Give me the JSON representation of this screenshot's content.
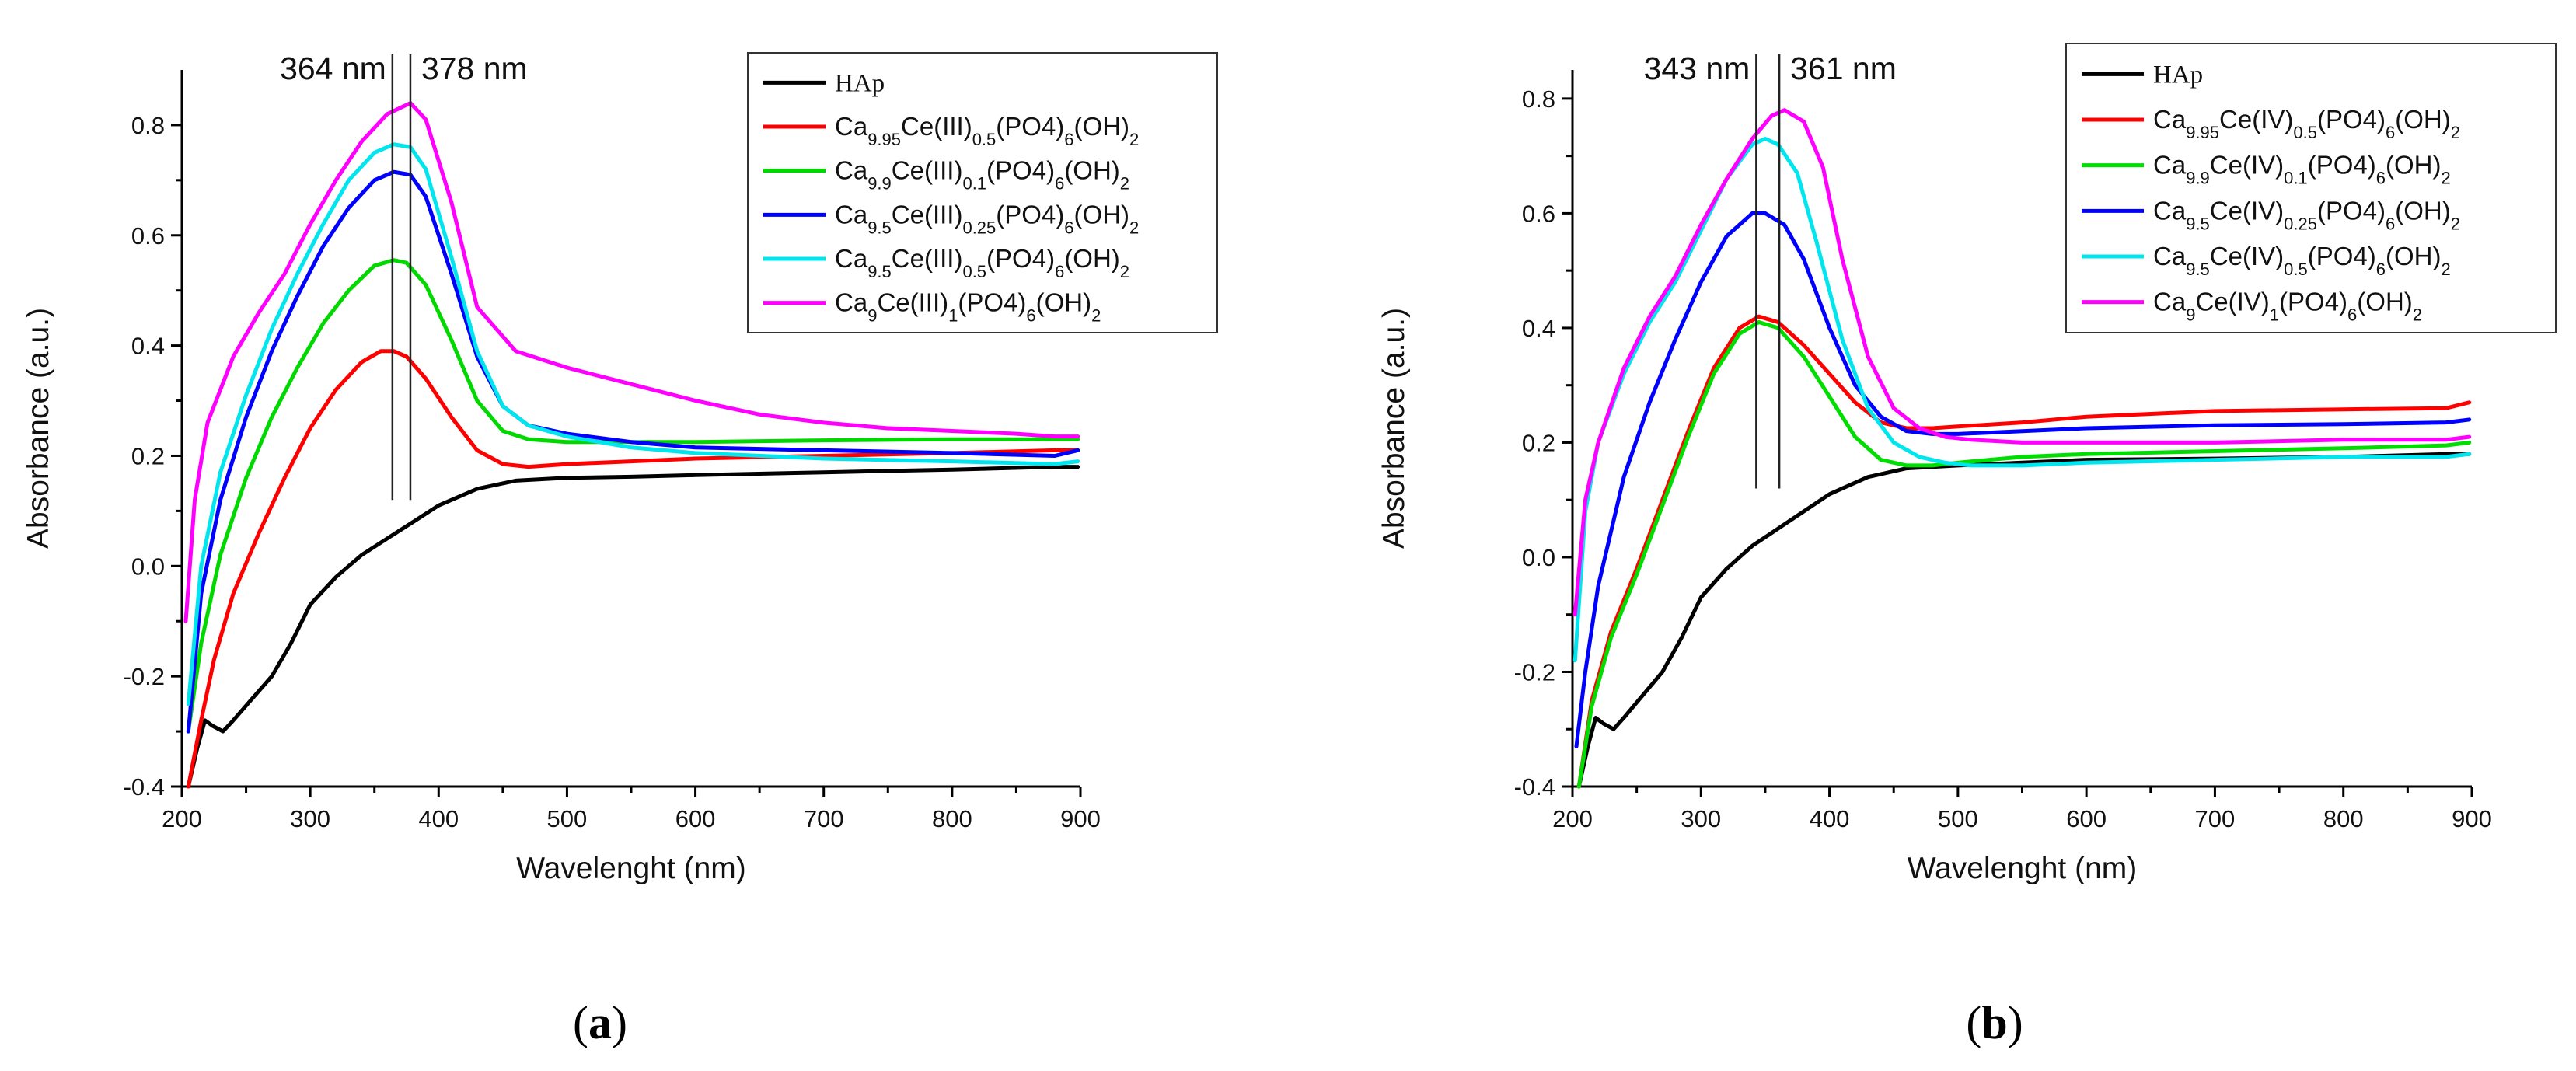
{
  "chart_data": [
    {
      "id": "a",
      "type": "line",
      "panel_label": "a",
      "xlabel": "Wavelenght (nm)",
      "ylabel": "Absorbance (a.u.)",
      "xlim": [
        200,
        900
      ],
      "ylim": [
        -0.4,
        0.9
      ],
      "xticks": [
        200,
        300,
        400,
        500,
        600,
        700,
        800,
        900
      ],
      "yticks": [
        -0.4,
        -0.2,
        0.0,
        0.2,
        0.4,
        0.6,
        0.8
      ],
      "grid": false,
      "legend_position": "top-right",
      "markers": [
        {
          "x": 364,
          "label": "364 nm",
          "side": "left"
        },
        {
          "x": 378,
          "label": "378 nm",
          "side": "right"
        }
      ],
      "series": [
        {
          "name": "HAp",
          "label_parts": [
            [
              "HAp",
              "n"
            ]
          ],
          "serif": true,
          "color": "#000000",
          "x": [
            205,
            212,
            218,
            224,
            232,
            240,
            255,
            270,
            285,
            300,
            320,
            340,
            360,
            380,
            400,
            430,
            460,
            500,
            550,
            600,
            700,
            800,
            880,
            898
          ],
          "y": [
            -0.4,
            -0.33,
            -0.28,
            -0.29,
            -0.3,
            -0.28,
            -0.24,
            -0.2,
            -0.14,
            -0.07,
            -0.02,
            0.02,
            0.05,
            0.08,
            0.11,
            0.14,
            0.155,
            0.16,
            0.162,
            0.165,
            0.17,
            0.175,
            0.18,
            0.18
          ]
        },
        {
          "name": "Ca9.95Ce(III)0.5(PO4)6(OH)2",
          "label_parts": [
            [
              "Ca",
              "n"
            ],
            [
              "9.95",
              "sub"
            ],
            [
              "Ce(III)",
              "n"
            ],
            [
              "0.5",
              "sub"
            ],
            [
              "(PO4)",
              "n"
            ],
            [
              "6",
              "sub"
            ],
            [
              "(OH)",
              "n"
            ],
            [
              "2",
              "sub"
            ]
          ],
          "color": "#ff0000",
          "x": [
            205,
            215,
            225,
            240,
            260,
            280,
            300,
            320,
            340,
            355,
            365,
            375,
            390,
            410,
            430,
            450,
            470,
            500,
            550,
            600,
            700,
            800,
            880,
            898
          ],
          "y": [
            -0.4,
            -0.28,
            -0.17,
            -0.05,
            0.06,
            0.16,
            0.25,
            0.32,
            0.37,
            0.39,
            0.39,
            0.38,
            0.34,
            0.27,
            0.21,
            0.185,
            0.18,
            0.185,
            0.19,
            0.195,
            0.2,
            0.205,
            0.21,
            0.21
          ]
        },
        {
          "name": "Ca9.9Ce(III)0.1(PO4)6(OH)2",
          "label_parts": [
            [
              "Ca",
              "n"
            ],
            [
              "9.9",
              "sub"
            ],
            [
              "Ce(III)",
              "n"
            ],
            [
              "0.1",
              "sub"
            ],
            [
              "(PO4)",
              "n"
            ],
            [
              "6",
              "sub"
            ],
            [
              "(OH)",
              "n"
            ],
            [
              "2",
              "sub"
            ]
          ],
          "color": "#00d800",
          "x": [
            205,
            215,
            230,
            250,
            270,
            290,
            310,
            330,
            350,
            365,
            375,
            390,
            410,
            430,
            450,
            470,
            500,
            550,
            600,
            700,
            800,
            880,
            898
          ],
          "y": [
            -0.3,
            -0.14,
            0.02,
            0.16,
            0.27,
            0.36,
            0.44,
            0.5,
            0.545,
            0.555,
            0.55,
            0.51,
            0.41,
            0.3,
            0.245,
            0.23,
            0.225,
            0.225,
            0.225,
            0.228,
            0.23,
            0.23,
            0.23
          ]
        },
        {
          "name": "Ca9.5Ce(III)0.25(PO4)6(OH)2",
          "label_parts": [
            [
              "Ca",
              "n"
            ],
            [
              "9.5",
              "sub"
            ],
            [
              "Ce(III)",
              "n"
            ],
            [
              "0.25",
              "sub"
            ],
            [
              "(PO4)",
              "n"
            ],
            [
              "6",
              "sub"
            ],
            [
              "(OH)",
              "n"
            ],
            [
              "2",
              "sub"
            ]
          ],
          "color": "#0000ff",
          "x": [
            205,
            215,
            230,
            250,
            270,
            290,
            310,
            330,
            350,
            365,
            378,
            390,
            410,
            430,
            450,
            470,
            500,
            550,
            600,
            700,
            800,
            880,
            898
          ],
          "y": [
            -0.3,
            -0.05,
            0.12,
            0.27,
            0.39,
            0.49,
            0.58,
            0.65,
            0.7,
            0.715,
            0.71,
            0.67,
            0.53,
            0.38,
            0.29,
            0.255,
            0.24,
            0.225,
            0.215,
            0.21,
            0.205,
            0.2,
            0.21
          ]
        },
        {
          "name": "Ca9.5Ce(III)0.5(PO4)6(OH)2",
          "label_parts": [
            [
              "Ca",
              "n"
            ],
            [
              "9.5",
              "sub"
            ],
            [
              "Ce(III)",
              "n"
            ],
            [
              "0.5",
              "sub"
            ],
            [
              "(PO4)",
              "n"
            ],
            [
              "6",
              "sub"
            ],
            [
              "(OH)",
              "n"
            ],
            [
              "2",
              "sub"
            ]
          ],
          "color": "#00e5ee",
          "x": [
            205,
            215,
            230,
            250,
            270,
            290,
            310,
            330,
            350,
            365,
            378,
            390,
            410,
            430,
            450,
            470,
            500,
            550,
            600,
            700,
            800,
            880,
            898
          ],
          "y": [
            -0.25,
            0.0,
            0.17,
            0.31,
            0.43,
            0.53,
            0.62,
            0.7,
            0.75,
            0.765,
            0.76,
            0.72,
            0.56,
            0.39,
            0.29,
            0.255,
            0.235,
            0.215,
            0.205,
            0.195,
            0.19,
            0.185,
            0.19
          ]
        },
        {
          "name": "Ca9Ce(III)1(PO4)6(OH)2",
          "label_parts": [
            [
              "Ca",
              "n"
            ],
            [
              "9",
              "sub"
            ],
            [
              "Ce(III)",
              "n"
            ],
            [
              "1",
              "sub"
            ],
            [
              "(PO4)",
              "n"
            ],
            [
              "6",
              "sub"
            ],
            [
              "(OH)",
              "n"
            ],
            [
              "2",
              "sub"
            ]
          ],
          "color": "#ff00ff",
          "x": [
            203,
            210,
            220,
            240,
            260,
            280,
            300,
            320,
            340,
            360,
            378,
            390,
            410,
            430,
            460,
            500,
            550,
            600,
            650,
            700,
            750,
            800,
            850,
            880,
            898
          ],
          "y": [
            -0.1,
            0.12,
            0.26,
            0.38,
            0.46,
            0.53,
            0.62,
            0.7,
            0.77,
            0.82,
            0.84,
            0.81,
            0.66,
            0.47,
            0.39,
            0.36,
            0.33,
            0.3,
            0.275,
            0.26,
            0.25,
            0.245,
            0.24,
            0.235,
            0.235
          ]
        }
      ]
    },
    {
      "id": "b",
      "type": "line",
      "panel_label": "b",
      "xlabel": "Wavelenght (nm)",
      "ylabel": "Absorbance (a.u.)",
      "xlim": [
        200,
        900
      ],
      "ylim": [
        -0.4,
        0.85
      ],
      "xticks": [
        200,
        300,
        400,
        500,
        600,
        700,
        800,
        900
      ],
      "yticks": [
        -0.4,
        -0.2,
        0.0,
        0.2,
        0.4,
        0.6,
        0.8
      ],
      "grid": false,
      "legend_position": "top-right",
      "markers": [
        {
          "x": 343,
          "label": "343 nm",
          "side": "left"
        },
        {
          "x": 361,
          "label": "361 nm",
          "side": "right"
        }
      ],
      "series": [
        {
          "name": "HAp",
          "label_parts": [
            [
              "HAp",
              "n"
            ]
          ],
          "serif": true,
          "color": "#000000",
          "x": [
            205,
            212,
            218,
            224,
            232,
            240,
            255,
            270,
            285,
            300,
            320,
            340,
            360,
            380,
            400,
            430,
            460,
            500,
            550,
            600,
            700,
            800,
            880,
            898
          ],
          "y": [
            -0.4,
            -0.33,
            -0.28,
            -0.29,
            -0.3,
            -0.28,
            -0.24,
            -0.2,
            -0.14,
            -0.07,
            -0.02,
            0.02,
            0.05,
            0.08,
            0.11,
            0.14,
            0.155,
            0.16,
            0.165,
            0.17,
            0.172,
            0.175,
            0.18,
            0.18
          ]
        },
        {
          "name": "Ca9.95Ce(IV)0.5(PO4)6(OH)2",
          "label_parts": [
            [
              "Ca",
              "n"
            ],
            [
              "9.95",
              "sub"
            ],
            [
              "Ce(IV)",
              "n"
            ],
            [
              "0.5",
              "sub"
            ],
            [
              "(PO4)",
              "n"
            ],
            [
              "6",
              "sub"
            ],
            [
              "(OH)",
              "n"
            ],
            [
              "2",
              "sub"
            ]
          ],
          "color": "#ff0000",
          "x": [
            205,
            215,
            230,
            250,
            270,
            290,
            310,
            330,
            345,
            360,
            380,
            400,
            420,
            440,
            460,
            480,
            500,
            550,
            600,
            700,
            800,
            880,
            898
          ],
          "y": [
            -0.4,
            -0.25,
            -0.13,
            -0.02,
            0.1,
            0.22,
            0.33,
            0.4,
            0.42,
            0.41,
            0.37,
            0.32,
            0.27,
            0.235,
            0.225,
            0.225,
            0.228,
            0.235,
            0.245,
            0.255,
            0.258,
            0.26,
            0.27
          ]
        },
        {
          "name": "Ca9.9Ce(IV)0.1(PO4)6(OH)2",
          "label_parts": [
            [
              "Ca",
              "n"
            ],
            [
              "9.9",
              "sub"
            ],
            [
              "Ce(IV)",
              "n"
            ],
            [
              "0.1",
              "sub"
            ],
            [
              "(PO4)",
              "n"
            ],
            [
              "6",
              "sub"
            ],
            [
              "(OH)",
              "n"
            ],
            [
              "2",
              "sub"
            ]
          ],
          "color": "#00dd00",
          "x": [
            205,
            215,
            230,
            250,
            270,
            290,
            310,
            330,
            345,
            360,
            380,
            400,
            420,
            440,
            460,
            480,
            500,
            550,
            600,
            700,
            800,
            880,
            898
          ],
          "y": [
            -0.4,
            -0.26,
            -0.14,
            -0.03,
            0.09,
            0.21,
            0.32,
            0.39,
            0.41,
            0.4,
            0.35,
            0.28,
            0.21,
            0.17,
            0.16,
            0.16,
            0.165,
            0.175,
            0.18,
            0.185,
            0.19,
            0.195,
            0.2
          ]
        },
        {
          "name": "Ca9.5Ce(IV)0.25(PO4)6(OH)2",
          "label_parts": [
            [
              "Ca",
              "n"
            ],
            [
              "9.5",
              "sub"
            ],
            [
              "Ce(IV)",
              "n"
            ],
            [
              "0.25",
              "sub"
            ],
            [
              "(PO4)",
              "n"
            ],
            [
              "6",
              "sub"
            ],
            [
              "(OH)",
              "n"
            ],
            [
              "2",
              "sub"
            ]
          ],
          "color": "#0000ff",
          "x": [
            203,
            210,
            220,
            240,
            260,
            280,
            300,
            320,
            340,
            350,
            365,
            380,
            400,
            420,
            440,
            460,
            480,
            500,
            550,
            600,
            700,
            800,
            880,
            898
          ],
          "y": [
            -0.33,
            -0.2,
            -0.05,
            0.14,
            0.27,
            0.38,
            0.48,
            0.56,
            0.6,
            0.6,
            0.58,
            0.52,
            0.4,
            0.3,
            0.245,
            0.22,
            0.215,
            0.215,
            0.22,
            0.225,
            0.23,
            0.232,
            0.235,
            0.24
          ]
        },
        {
          "name": "Ca9.5Ce(IV)0.5(PO4)6(OH)2",
          "label_parts": [
            [
              "Ca",
              "n"
            ],
            [
              "9.5",
              "sub"
            ],
            [
              "Ce(IV)",
              "n"
            ],
            [
              "0.5",
              "sub"
            ],
            [
              "(PO4)",
              "n"
            ],
            [
              "6",
              "sub"
            ],
            [
              "(OH)",
              "n"
            ],
            [
              "2",
              "sub"
            ]
          ],
          "color": "#00e5ee",
          "x": [
            202,
            210,
            220,
            240,
            260,
            280,
            300,
            320,
            340,
            350,
            360,
            375,
            390,
            410,
            430,
            450,
            470,
            490,
            510,
            550,
            600,
            700,
            800,
            880,
            898
          ],
          "y": [
            -0.18,
            0.08,
            0.2,
            0.32,
            0.41,
            0.48,
            0.57,
            0.66,
            0.72,
            0.73,
            0.72,
            0.67,
            0.55,
            0.38,
            0.26,
            0.2,
            0.175,
            0.165,
            0.16,
            0.16,
            0.165,
            0.17,
            0.175,
            0.175,
            0.18
          ]
        },
        {
          "name": "Ca9Ce(IV)1(PO4)6(OH)2",
          "label_parts": [
            [
              "Ca",
              "n"
            ],
            [
              "9",
              "sub"
            ],
            [
              "Ce(IV)",
              "n"
            ],
            [
              "1",
              "sub"
            ],
            [
              "(PO4)",
              "n"
            ],
            [
              "6",
              "sub"
            ],
            [
              "(OH)",
              "n"
            ],
            [
              "2",
              "sub"
            ]
          ],
          "color": "#ff00ff",
          "x": [
            202,
            210,
            220,
            240,
            260,
            280,
            300,
            320,
            340,
            355,
            365,
            380,
            395,
            410,
            430,
            450,
            470,
            490,
            510,
            550,
            600,
            700,
            800,
            880,
            898
          ],
          "y": [
            -0.1,
            0.1,
            0.2,
            0.33,
            0.42,
            0.49,
            0.58,
            0.66,
            0.73,
            0.77,
            0.78,
            0.76,
            0.68,
            0.52,
            0.35,
            0.26,
            0.225,
            0.21,
            0.205,
            0.2,
            0.2,
            0.2,
            0.205,
            0.205,
            0.21
          ]
        }
      ]
    }
  ]
}
